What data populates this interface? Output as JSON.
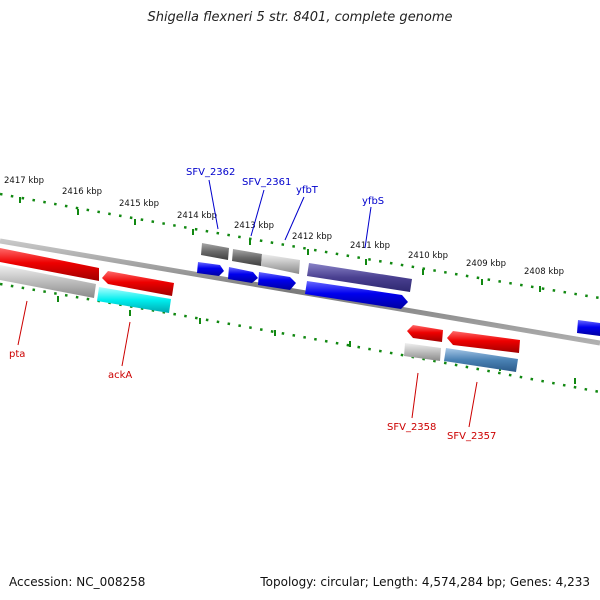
{
  "title": "Shigella flexneri 5 str. 8401, complete genome",
  "footer": {
    "accession": "Accession: NC_008258",
    "summary": "Topology: circular; Length: 4,574,284 bp; Genes: 4,233"
  },
  "colors": {
    "forward_strand": "#0000ee",
    "reverse_strand": "#ee0000",
    "ruler": "#118811",
    "backbone": "#8a8a8a",
    "label_forward": "#0000cc",
    "label_reverse": "#cc0000"
  },
  "ruler_labels": [
    "2417 kbp",
    "2416 kbp",
    "2415 kbp",
    "2414 kbp",
    "2413 kbp",
    "2412 kbp",
    "2411 kbp",
    "2410 kbp",
    "2409 kbp",
    "2408 kbp"
  ],
  "gene_labels_forward": [
    "SFV_2362",
    "SFV_2361",
    "yfbT",
    "yfbS"
  ],
  "gene_labels_reverse": [
    "pta",
    "ackA",
    "SFV_2358",
    "SFV_2357"
  ]
}
